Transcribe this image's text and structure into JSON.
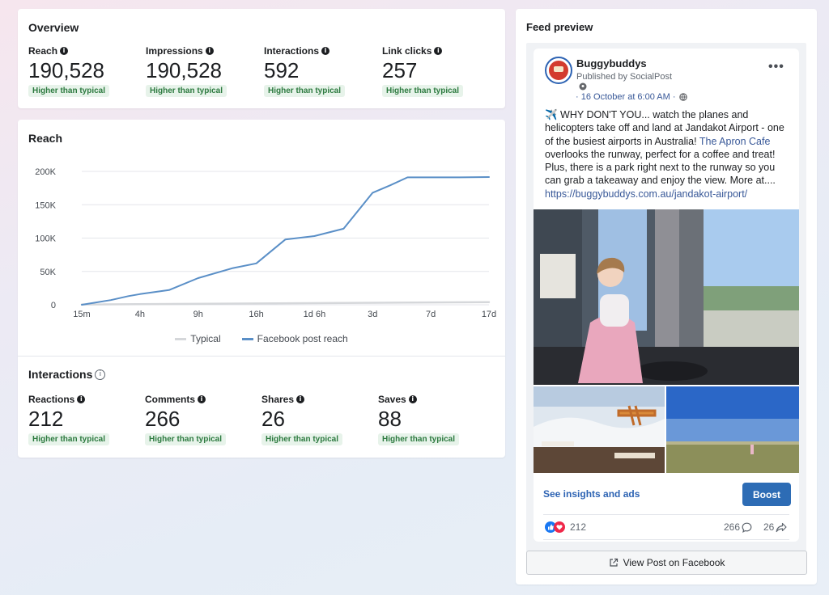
{
  "overview": {
    "title": "Overview",
    "metrics": [
      {
        "label": "Reach",
        "value": "190,528",
        "badge": "Higher than typical"
      },
      {
        "label": "Impressions",
        "value": "190,528",
        "badge": "Higher than typical"
      },
      {
        "label": "Interactions",
        "value": "592",
        "badge": "Higher than typical"
      },
      {
        "label": "Link clicks",
        "value": "257",
        "badge": "Higher than typical"
      }
    ]
  },
  "reach": {
    "title": "Reach",
    "legend": {
      "typical": "Typical",
      "post": "Facebook post reach"
    }
  },
  "chart_data": {
    "type": "line",
    "x_labels": [
      "15m",
      "4h",
      "9h",
      "16h",
      "1d 6h",
      "3d",
      "7d",
      "17d"
    ],
    "y_ticks": [
      "0",
      "50K",
      "100K",
      "150K",
      "200K"
    ],
    "ylim": [
      0,
      200000
    ],
    "grid": true,
    "legend_position": "bottom",
    "series": [
      {
        "name": "Facebook post reach",
        "color": "#5a8fc7",
        "x": [
          0,
          0.5,
          0.8,
          1.0,
          1.5,
          2.0,
          2.6,
          3.0,
          3.5,
          4.0,
          4.5,
          5.0,
          5.3,
          5.6,
          6.0,
          6.5,
          7.0
        ],
        "y": [
          0,
          7000,
          13000,
          16000,
          22000,
          40000,
          55000,
          62000,
          98000,
          103000,
          114000,
          168000,
          179000,
          191000,
          191000,
          191000,
          191500
        ]
      },
      {
        "name": "Typical",
        "color": "#d5d7da",
        "x": [
          0,
          7.0
        ],
        "y": [
          500,
          4000
        ]
      }
    ]
  },
  "interactions": {
    "title": "Interactions",
    "metrics": [
      {
        "label": "Reactions",
        "value": "212",
        "badge": "Higher than typical"
      },
      {
        "label": "Comments",
        "value": "266",
        "badge": "Higher than typical"
      },
      {
        "label": "Shares",
        "value": "26",
        "badge": "Higher than typical"
      },
      {
        "label": "Saves",
        "value": "88",
        "badge": "Higher than typical"
      }
    ]
  },
  "feed": {
    "title": "Feed preview",
    "page_name": "Buggybuddys",
    "published_by": "Published by SocialPost",
    "timestamp": "· 16 October at 6:00 AM ·",
    "text_a": "✈️ WHY DON'T YOU... watch the planes and helicopters take off and land at Jandakot Airport - one of the busiest airports in Australia! ",
    "text_link": "The Apron Cafe",
    "text_b": " overlooks the runway, perfect for a coffee and treat! Plus, there is a park right next to the runway so you can grab a takeaway and enjoy the view. More at.... ",
    "text_url": "https://buggybuddys.com.au/jandakot-airport/",
    "insights_link": "See insights and ads",
    "boost_label": "Boost",
    "reaction_count": "212",
    "comment_count": "266",
    "share_count": "26",
    "view_post_label": "View Post on Facebook"
  },
  "colors": {
    "accent": "#2d6cb5",
    "badge_bg": "#e7f3ea",
    "badge_text": "#2c7a3f",
    "line": "#5a8fc7"
  }
}
